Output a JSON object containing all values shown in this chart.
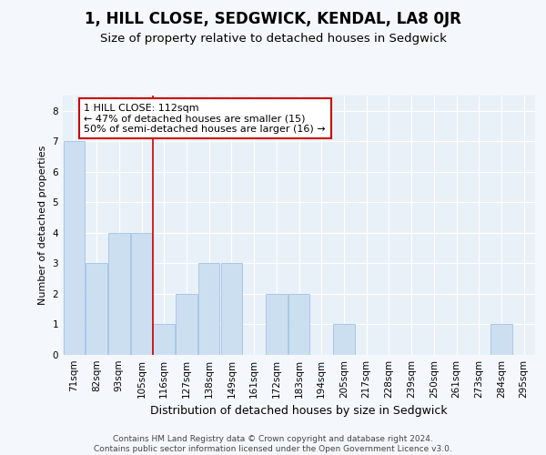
{
  "title": "1, HILL CLOSE, SEDGWICK, KENDAL, LA8 0JR",
  "subtitle": "Size of property relative to detached houses in Sedgwick",
  "xlabel": "Distribution of detached houses by size in Sedgwick",
  "ylabel": "Number of detached properties",
  "categories": [
    "71sqm",
    "82sqm",
    "93sqm",
    "105sqm",
    "116sqm",
    "127sqm",
    "138sqm",
    "149sqm",
    "161sqm",
    "172sqm",
    "183sqm",
    "194sqm",
    "205sqm",
    "217sqm",
    "228sqm",
    "239sqm",
    "250sqm",
    "261sqm",
    "273sqm",
    "284sqm",
    "295sqm"
  ],
  "values": [
    7,
    3,
    4,
    4,
    1,
    2,
    3,
    3,
    0,
    2,
    2,
    0,
    1,
    0,
    0,
    0,
    0,
    0,
    0,
    1,
    0
  ],
  "bar_color": "#ccdff0",
  "bar_edge_color": "#a8c8e8",
  "vline_color": "#cc0000",
  "vline_x": 3.5,
  "annotation_text": "1 HILL CLOSE: 112sqm\n← 47% of detached houses are smaller (15)\n50% of semi-detached houses are larger (16) →",
  "annotation_box_facecolor": "#ffffff",
  "annotation_box_edgecolor": "#cc0000",
  "ylim": [
    0,
    8.5
  ],
  "yticks": [
    0,
    1,
    2,
    3,
    4,
    5,
    6,
    7,
    8
  ],
  "footer_text": "Contains HM Land Registry data © Crown copyright and database right 2024.\nContains public sector information licensed under the Open Government Licence v3.0.",
  "fig_facecolor": "#f4f8fc",
  "plot_facecolor": "#e8f0f8",
  "title_fontsize": 12,
  "subtitle_fontsize": 9.5,
  "ylabel_fontsize": 8,
  "xlabel_fontsize": 9,
  "tick_fontsize": 7.5,
  "footer_fontsize": 6.5
}
